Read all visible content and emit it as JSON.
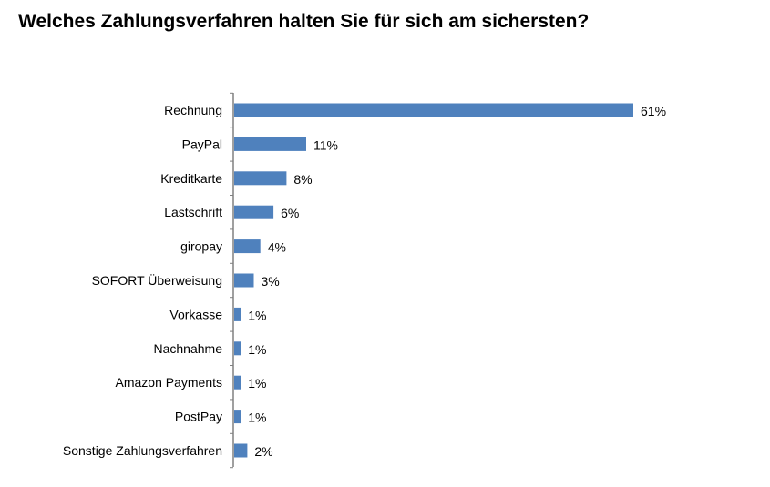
{
  "chart_data": {
    "type": "bar",
    "orientation": "horizontal",
    "title": "Welches Zahlungsverfahren halten Sie für sich am sichersten?",
    "categories": [
      "Rechnung",
      "PayPal",
      "Kreditkarte",
      "Lastschrift",
      "giropay",
      "SOFORT Überweisung",
      "Vorkasse",
      "Nachnahme",
      "Amazon Payments",
      "PostPay",
      "Sonstige Zahlungsverfahren"
    ],
    "values": [
      61,
      11,
      8,
      6,
      4,
      3,
      1,
      1,
      1,
      1,
      2
    ],
    "value_labels": [
      "61%",
      "11%",
      "8%",
      "6%",
      "4%",
      "3%",
      "1%",
      "1%",
      "1%",
      "1%",
      "2%"
    ],
    "unit": "%",
    "xlim": [
      0,
      61
    ],
    "bar_color": "#4F81BD",
    "axis_color": "#808080",
    "grid": false,
    "legend": "none"
  }
}
